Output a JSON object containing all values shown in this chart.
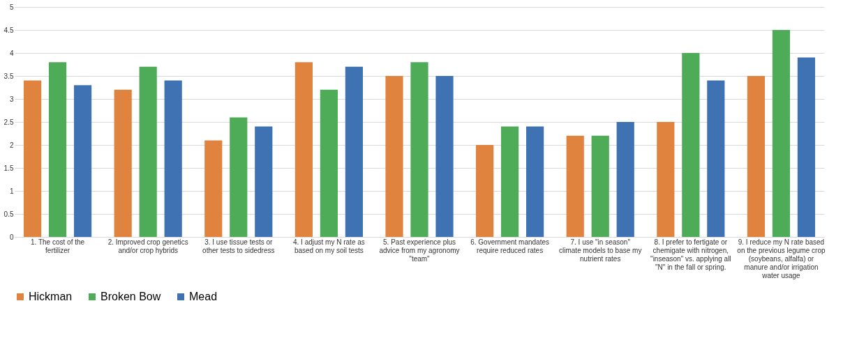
{
  "chart_data": {
    "type": "bar",
    "categories": [
      "1. The cost of the fertilizer",
      "2. Improved crop genetics and/or crop hybrids",
      "3. I use tissue tests or other tests to sidedress",
      "4. I adjust my N rate as based on my soil tests",
      "5. Past experience plus advice from my agronomy \"team\"",
      "6. Government mandates require reduced rates",
      "7. I use \"in season\" climate models to base my nutrient rates",
      "8. I prefer to fertigate or chemigate with nitrogen, \"inseason\" vs. applying all \"N\" in the fall or spring.",
      "9. I reduce my N rate based on the previous legume crop (soybeans, alfalfa) or manure and/or irrigation water usage"
    ],
    "series": [
      {
        "name": "Hickman",
        "color": "#e0833f",
        "values": [
          3.4,
          3.2,
          2.1,
          3.8,
          3.5,
          2.0,
          2.2,
          2.5,
          3.5
        ]
      },
      {
        "name": "Broken Bow",
        "color": "#4eab58",
        "values": [
          3.8,
          3.7,
          2.6,
          3.2,
          3.8,
          2.4,
          2.2,
          4.0,
          4.5
        ]
      },
      {
        "name": "Mead",
        "color": "#3f72b3",
        "values": [
          3.3,
          3.4,
          2.4,
          3.7,
          3.5,
          2.4,
          2.5,
          3.4,
          3.9
        ]
      }
    ],
    "ylim": [
      0,
      5
    ],
    "yticks": [
      0,
      0.5,
      1,
      1.5,
      2,
      2.5,
      3,
      3.5,
      4,
      4.5,
      5
    ],
    "grid": "y",
    "legend": "bottom"
  }
}
